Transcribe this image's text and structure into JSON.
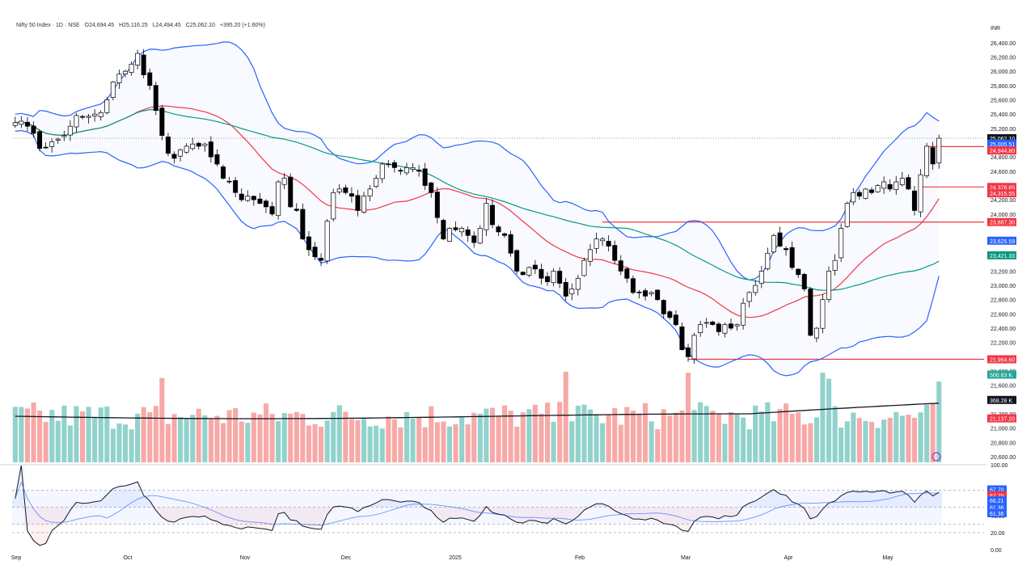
{
  "header": {
    "symbol": "Nifty 50 Index · 1D · NSE",
    "open": "O24,694.45",
    "high": "H25,116.25",
    "low": "L24,494.45",
    "close": "C25,062.10",
    "change": "+395.20 (+1.60%)"
  },
  "price_axis": {
    "unit": "INR",
    "ticks": [
      "26,400.00",
      "26,200.00",
      "26,000.00",
      "25,800.00",
      "25,600.00",
      "25,400.00",
      "25,200.00",
      "24,800.00",
      "24,600.00",
      "24,200.00",
      "24,000.00",
      "23,200.00",
      "23,000.00",
      "22,800.00",
      "22,600.00",
      "22,400.00",
      "22,200.00",
      "21,800.00",
      "21,600.00",
      "21,200.00",
      "21,000.00",
      "20,800.00",
      "20,600.00"
    ],
    "tick_values": [
      26400,
      26200,
      26000,
      25800,
      25600,
      25400,
      25200,
      24800,
      24600,
      24200,
      24000,
      23200,
      23000,
      22800,
      22600,
      22400,
      22200,
      21800,
      21600,
      21200,
      21000,
      20800,
      20600
    ]
  },
  "badges": [
    {
      "label": "25,062.10",
      "value": 25062.1,
      "color": "#131722"
    },
    {
      "label": "25,005.51",
      "value": 24985,
      "color": "#2962ff"
    },
    {
      "label": "24,944.80",
      "value": 24890,
      "color": "#f23645"
    },
    {
      "label": "24,378.85",
      "value": 24378.85,
      "color": "#f23645"
    },
    {
      "label": "24,315.55",
      "value": 24290,
      "color": "#f23645"
    },
    {
      "label": "23,887.30",
      "value": 23887.3,
      "color": "#f23645"
    },
    {
      "label": "23,625.59",
      "value": 23625.59,
      "color": "#2962ff"
    },
    {
      "label": "23,421.33",
      "value": 23421.33,
      "color": "#089981"
    },
    {
      "label": "21,964.60",
      "value": 21964.6,
      "color": "#f23645"
    },
    {
      "label": "500.83 K",
      "value": 21750,
      "color": "#26a69a"
    },
    {
      "label": "368.28 K",
      "value": 21395,
      "color": "#131722"
    },
    {
      "label": "21,137.20",
      "value": 21137.2,
      "color": "#f23645"
    }
  ],
  "rsi_axis": {
    "ticks": [
      "100.00",
      "60.00",
      "40.00",
      "20.00",
      "0.00"
    ],
    "tick_values": [
      100,
      60,
      40,
      20,
      0
    ]
  },
  "rsi_badges": [
    {
      "label": "67.70",
      "value": 71,
      "color": "#2962ff"
    },
    {
      "label": "67.70",
      "value": 64,
      "color": "#f23645"
    },
    {
      "label": "66.21",
      "value": 58,
      "color": "#2962ff"
    },
    {
      "label": "61.36",
      "value": 50,
      "color": "#2962ff"
    },
    {
      "label": "61.36",
      "value": 43,
      "color": "#2962ff"
    }
  ],
  "time_axis": [
    "Sep",
    "Oct",
    "Nov",
    "Dec",
    "2025",
    "Feb",
    "Mar",
    "Apr",
    "May"
  ],
  "chart_data": {
    "type": "candlestick",
    "symbol": "Nifty 50 Index",
    "interval": "1D",
    "exchange": "NSE",
    "price_range": [
      20600,
      26400
    ],
    "indicators": [
      "Bollinger Bands (20)",
      "SMA 50",
      "Volume with MA",
      "RSI with MA"
    ],
    "horizontal_levels": [
      23887.3,
      21964.6
    ],
    "upper_level_segment": 24944.8,
    "support_segment": 24378.85,
    "grid": "off",
    "legend": "top-left",
    "daily_closes": [
      25280,
      25300,
      25230,
      25130,
      24920,
      24930,
      25010,
      25050,
      25100,
      25230,
      25380,
      25360,
      25370,
      25400,
      25420,
      25600,
      25850,
      25960,
      26000,
      26100,
      26250,
      25950,
      25800,
      25450,
      25100,
      24850,
      24780,
      24900,
      24950,
      24980,
      24950,
      24980,
      24800,
      24700,
      24500,
      24450,
      24300,
      24200,
      24250,
      24200,
      24150,
      24100,
      24000,
      24450,
      24500,
      24100,
      24050,
      23650,
      23500,
      23400,
      23350,
      23900,
      24300,
      24350,
      24300,
      24250,
      24050,
      24250,
      24350,
      24500,
      24700,
      24700,
      24650,
      24600,
      24650,
      24650,
      24600,
      24400,
      24300,
      23950,
      23650,
      23800,
      23780,
      23800,
      23700,
      23600,
      23800,
      24150,
      23850,
      23750,
      23700,
      23450,
      23200,
      23150,
      23250,
      23230,
      23100,
      23050,
      23200,
      23030,
      22850,
      22950,
      23100,
      23350,
      23500,
      23650,
      23650,
      23550,
      23350,
      23200,
      23100,
      22900,
      22900,
      22850,
      22900,
      22800,
      22600,
      22550,
      22450,
      22100,
      22000,
      22300,
      22450,
      22480,
      22450,
      22350,
      22450,
      22400,
      22450,
      22750,
      22900,
      23000,
      23200,
      23450,
      23700,
      23550,
      23500,
      23250,
      23150,
      22950,
      22300,
      22400,
      22800,
      23200,
      23350,
      23800,
      24150,
      24300,
      24250,
      24350,
      24300,
      24400,
      24450,
      24350,
      24450,
      24500,
      24350,
      24050,
      24550,
      24950,
      24700,
      25062
    ]
  }
}
